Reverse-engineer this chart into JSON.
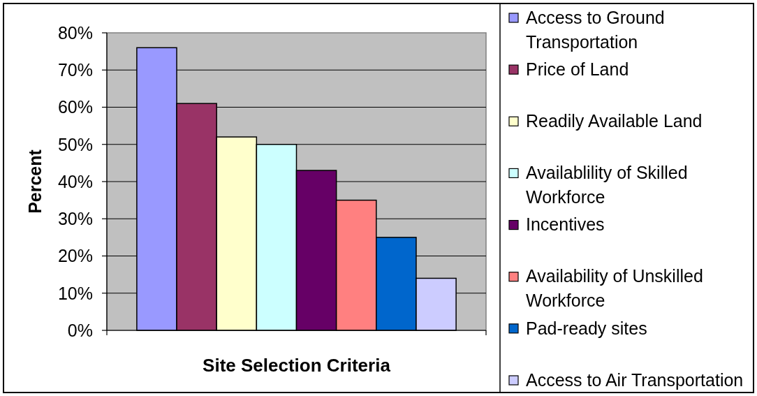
{
  "chart_data": {
    "type": "bar",
    "xlabel": "Site Selection Criteria",
    "ylabel": "Percent",
    "categories": [
      null
    ],
    "series": [
      {
        "name": "Access to Ground Transportation",
        "color": "#9999ff",
        "values": [
          76
        ]
      },
      {
        "name": "Price of Land",
        "color": "#993366",
        "values": [
          61
        ]
      },
      {
        "name": "Readily Available Land",
        "color": "#ffffcc",
        "values": [
          52
        ]
      },
      {
        "name": "Availablility of Skilled Workforce",
        "color": "#ccffff",
        "values": [
          50
        ]
      },
      {
        "name": "Incentives",
        "color": "#660066",
        "values": [
          43
        ]
      },
      {
        "name": "Availability of Unskilled Workforce",
        "color": "#ff8080",
        "values": [
          35
        ]
      },
      {
        "name": "Pad-ready sites",
        "color": "#0066cc",
        "values": [
          25
        ]
      },
      {
        "name": "Access to Air Transportation",
        "color": "#ccccff",
        "values": [
          14
        ]
      }
    ],
    "ylim": [
      0,
      80
    ],
    "yticks": [
      {
        "value": 0,
        "label": "0%"
      },
      {
        "value": 10,
        "label": "10%"
      },
      {
        "value": 20,
        "label": "20%"
      },
      {
        "value": 30,
        "label": "30%"
      },
      {
        "value": 40,
        "label": "40%"
      },
      {
        "value": 50,
        "label": "50%"
      },
      {
        "value": 60,
        "label": "60%"
      },
      {
        "value": 70,
        "label": "70%"
      },
      {
        "value": 80,
        "label": "80%"
      }
    ],
    "grid": "y",
    "legend": "right"
  }
}
